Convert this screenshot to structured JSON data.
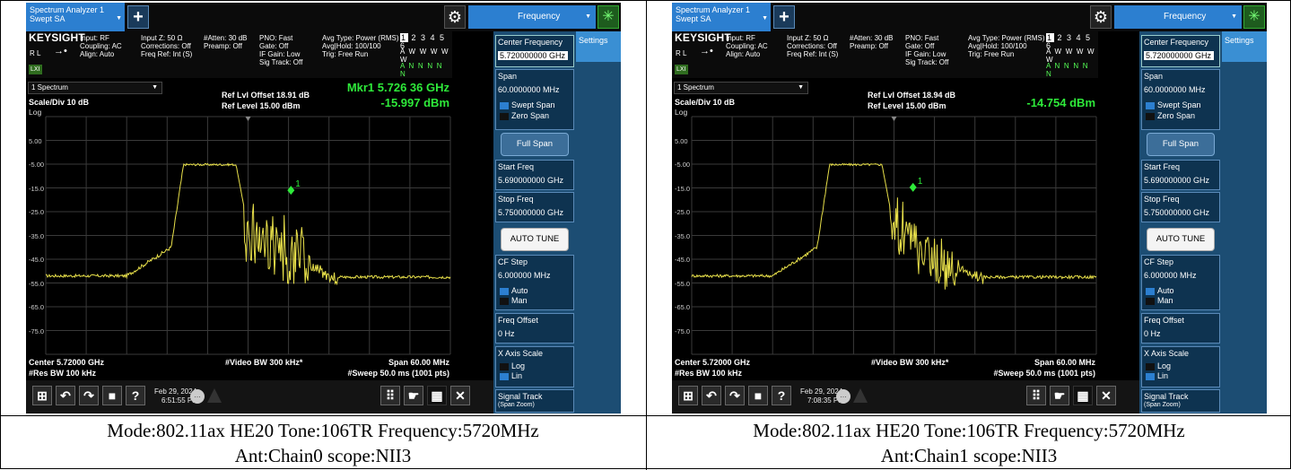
{
  "colors": {
    "accent_blue": "#2c7fd0",
    "trace_yellow": "#e8e04a",
    "marker_green": "#2eea3a",
    "panel_blue": "#1c4d73"
  },
  "panels": [
    {
      "window_title_line1": "Spectrum Analyzer 1",
      "window_title_line2": "Swept SA",
      "logo": "KEYSIGHT",
      "rl_label": "R L",
      "lxi_label": "LXI",
      "frequency_menu": "Frequency",
      "settings_tab_line1": "Settings",
      "info_col1": "Input: RF\nCoupling: AC\nAlign: Auto",
      "info_col2": "Input Z: 50 Ω\nCorrections: Off\nFreq Ref: Int (S)",
      "info_col3": "#Atten: 30 dB\nPreamp: Off",
      "info_col4": "PNO: Fast\nGate: Off\nIF Gain: Low\nSig Track: Off",
      "info_col5": "Avg Type: Power (RMS)\nAvg|Hold: 100/100\nTrig: Free Run",
      "trace_numbers": "1 2 3 4 5 6",
      "trace_row_type": "A W W W W W",
      "trace_row_det": "A N N N N N",
      "trace_select": "1 Spectrum",
      "scale_div": "Scale/Div 10 dB",
      "log_label": "Log",
      "ref_offset": "Ref Lvl Offset 18.91 dB",
      "ref_level": "Ref Level 15.00 dBm",
      "marker_freq": "Mkr1  5.726 36 GHz",
      "marker_amp": "-15.997 dBm",
      "marker_label": "1",
      "y_ticks": [
        "5.00",
        "-5.00",
        "-15.0",
        "-25.0",
        "-35.0",
        "-45.0",
        "-55.0",
        "-65.0",
        "-75.0"
      ],
      "center_label": "Center 5.72000 GHz",
      "res_bw": "#Res BW 100 kHz",
      "video_bw": "#Video BW 300 kHz*",
      "span_label": "Span 60.00 MHz",
      "sweep_label": "#Sweep 50.0 ms (1001 pts)",
      "date": "Feb 29, 2024",
      "time": "6:51:55 PM",
      "side": {
        "center_freq_title": "Center Frequency",
        "center_freq_value": "5.720000000 GHz",
        "span_title": "Span",
        "span_value": "60.0000000 MHz",
        "swept_span": "Swept Span",
        "zero_span": "Zero Span",
        "full_span": "Full Span",
        "start_freq_title": "Start Freq",
        "start_freq_value": "5.690000000 GHz",
        "stop_freq_title": "Stop Freq",
        "stop_freq_value": "5.750000000 GHz",
        "auto_tune": "AUTO TUNE",
        "cf_step_title": "CF Step",
        "cf_step_value": "6.000000 MHz",
        "auto": "Auto",
        "man": "Man",
        "freq_offset_title": "Freq Offset",
        "freq_offset_value": "0 Hz",
        "x_axis_title": "X Axis Scale",
        "log": "Log",
        "lin": "Lin",
        "signal_track": "Signal Track",
        "signal_track_sub": "(Span Zoom)"
      },
      "caption_line1": "Mode:802.11ax HE20 Tone:106TR Frequency:5720MHz",
      "caption_line2": "Ant:Chain0 scope:NII3"
    },
    {
      "window_title_line1": "Spectrum Analyzer 1",
      "window_title_line2": "Swept SA",
      "logo": "KEYSIGHT",
      "rl_label": "R L",
      "lxi_label": "LXI",
      "frequency_menu": "Frequency",
      "settings_tab_line1": "Settings",
      "info_col1": "Input: RF\nCoupling: AC\nAlign: Auto",
      "info_col2": "Input Z: 50 Ω\nCorrections: Off\nFreq Ref: Int (S)",
      "info_col3": "#Atten: 30 dB\nPreamp: Off",
      "info_col4": "PNO: Fast\nGate: Off\nIF Gain: Low\nSig Track: Off",
      "info_col5": "Avg Type: Power (RMS)\nAvg|Hold: 100/100\nTrig: Free Run",
      "trace_numbers": "1 2 3 4 5 6",
      "trace_row_type": "A W W W W W",
      "trace_row_det": "A N N N N N",
      "trace_select": "1 Spectrum",
      "scale_div": "Scale/Div 10 dB",
      "log_label": "Log",
      "ref_offset": "Ref Lvl Offset 18.94 dB",
      "ref_level": "Ref Level 15.00 dBm",
      "marker_freq": "",
      "marker_amp": "-14.754 dBm",
      "marker_label": "1",
      "y_ticks": [
        "5.00",
        "-5.00",
        "-15.0",
        "-25.0",
        "-35.0",
        "-45.0",
        "-55.0",
        "-65.0",
        "-75.0"
      ],
      "center_label": "Center 5.72000 GHz",
      "res_bw": "#Res BW 100 kHz",
      "video_bw": "#Video BW 300 kHz*",
      "span_label": "Span 60.00 MHz",
      "sweep_label": "#Sweep 50.0 ms (1001 pts)",
      "date": "Feb 29, 2024",
      "time": "7:08:35 PM",
      "side": {
        "center_freq_title": "Center Frequency",
        "center_freq_value": "5.720000000 GHz",
        "span_title": "Span",
        "span_value": "60.0000000 MHz",
        "swept_span": "Swept Span",
        "zero_span": "Zero Span",
        "full_span": "Full Span",
        "start_freq_title": "Start Freq",
        "start_freq_value": "5.690000000 GHz",
        "stop_freq_title": "Stop Freq",
        "stop_freq_value": "5.750000000 GHz",
        "auto_tune": "AUTO TUNE",
        "cf_step_title": "CF Step",
        "cf_step_value": "6.000000 MHz",
        "auto": "Auto",
        "man": "Man",
        "freq_offset_title": "Freq Offset",
        "freq_offset_value": "0 Hz",
        "x_axis_title": "X Axis Scale",
        "log": "Log",
        "lin": "Lin",
        "signal_track": "Signal Track",
        "signal_track_sub": "(Span Zoom)"
      },
      "caption_line1": "Mode:802.11ax HE20 Tone:106TR Frequency:5720MHz",
      "caption_line2": "Ant:Chain1 scope:NII3"
    }
  ]
}
